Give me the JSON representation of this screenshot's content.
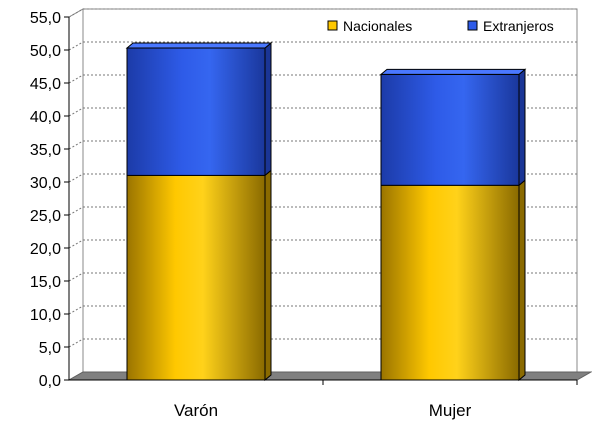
{
  "chart_data": {
    "type": "bar",
    "stacked": true,
    "categories": [
      "Varón",
      "Mujer"
    ],
    "series": [
      {
        "name": "Nacionales",
        "values": [
          31.0,
          29.5
        ],
        "color": "#FFC800"
      },
      {
        "name": "Extranjeros",
        "values": [
          19.3,
          16.8
        ],
        "color": "#2E5BE8"
      }
    ],
    "ylim": [
      0,
      55
    ],
    "ytick_labels": [
      "0,0",
      "5,0",
      "10,0",
      "15,0",
      "20,0",
      "25,0",
      "30,0",
      "35,0",
      "40,0",
      "45,0",
      "50,0",
      "55,0"
    ],
    "grid": true,
    "legend_position": "top-right",
    "title": "",
    "xlabel": "",
    "ylabel": ""
  }
}
